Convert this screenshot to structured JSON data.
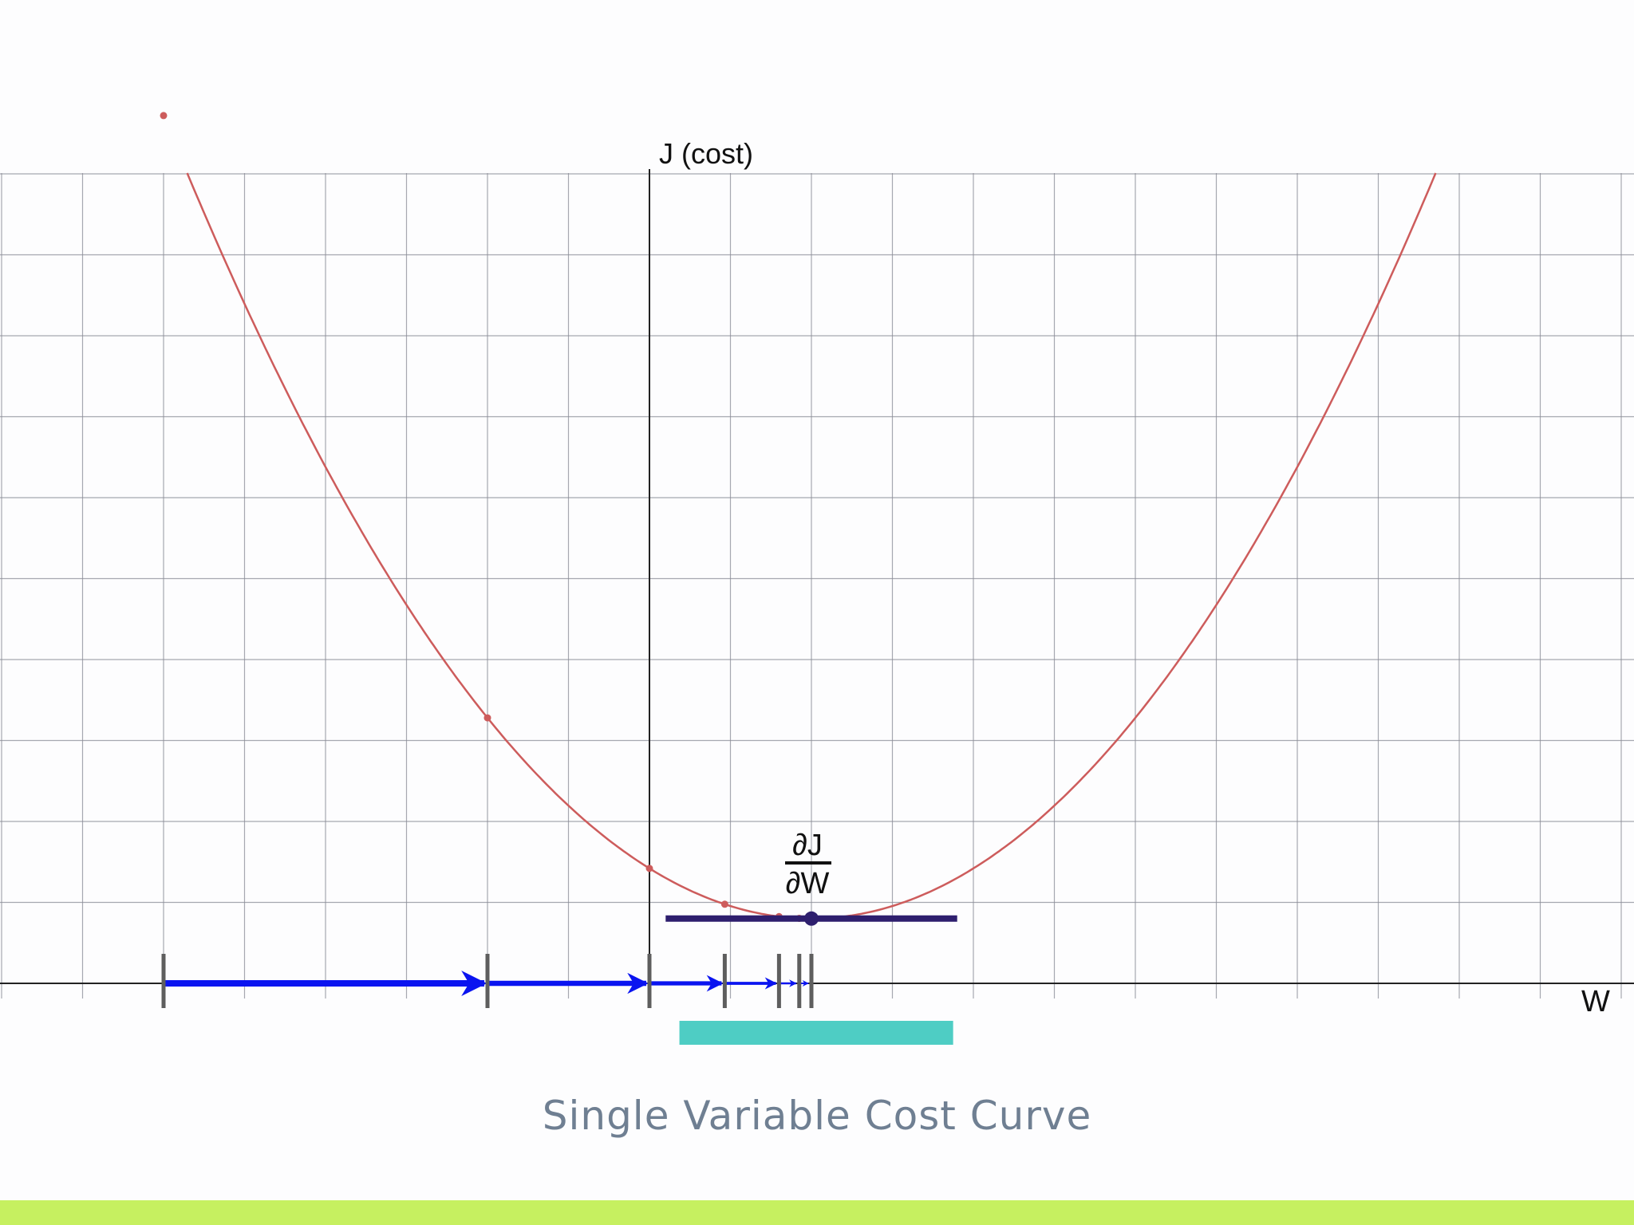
{
  "caption": "Single Variable Cost Curve",
  "axes": {
    "y_label": "J (cost)",
    "x_label": "W"
  },
  "derivative_label": {
    "numerator": "∂J",
    "denominator": "∂W"
  },
  "chart_data": {
    "type": "line",
    "title": "Single Variable Cost Curve",
    "xlabel": "W",
    "ylabel": "J (cost)",
    "grid": true,
    "curve": {
      "form": "parabola",
      "vertex_w": 2,
      "vertex_j": 0.8,
      "a": 0.155
    },
    "xlim": [
      -8,
      12
    ],
    "ylim": [
      0,
      10
    ],
    "descent_points_w": [
      -6,
      -2,
      0,
      0.93,
      1.6,
      1.85,
      2
    ],
    "tangent_at_w": 2,
    "tangent_span_w": [
      0.2,
      3.8
    ],
    "highlight_span_w": [
      0.37,
      3.75
    ]
  },
  "colors": {
    "grid": "#8a8c96",
    "axis": "#222222",
    "curve": "#cd5c5c",
    "step_arrow": "#0a14f0",
    "step_tick": "#5e5e5e",
    "tangent": "#2e1f6e",
    "highlight": "#4ecdc4",
    "caption": "#6f7f92",
    "bottom_bar": "#c6f060"
  }
}
